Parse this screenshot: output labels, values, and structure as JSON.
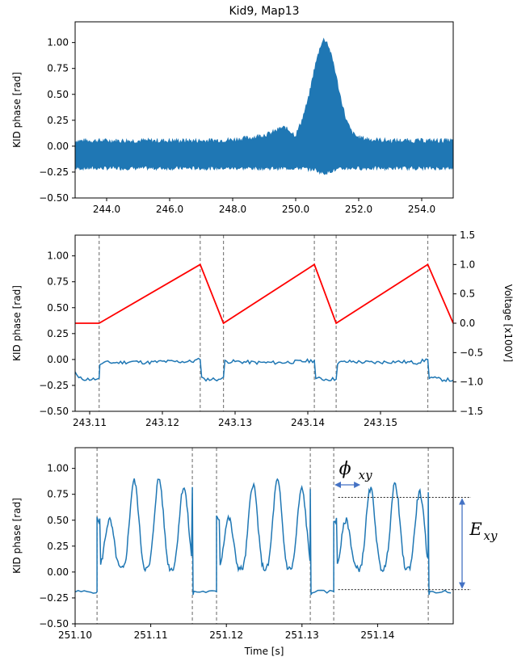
{
  "chart_data": [
    {
      "type": "area",
      "title": "Kid9, Map13",
      "xlabel": "",
      "ylabel": "KID phase [rad]",
      "xlim": [
        243.0,
        255.0
      ],
      "ylim": [
        -0.5,
        1.2
      ],
      "xticks": [
        244.0,
        246.0,
        248.0,
        250.0,
        252.0,
        254.0
      ],
      "xticklabels": [
        "244.0",
        "246.0",
        "248.0",
        "250.0",
        "252.0",
        "254.0"
      ],
      "yticks": [
        -0.5,
        -0.25,
        0.0,
        0.25,
        0.5,
        0.75,
        1.0
      ],
      "yticklabels": [
        "−0.50",
        "−0.25",
        "0.00",
        "0.25",
        "0.50",
        "0.75",
        "1.00"
      ],
      "series": [
        {
          "color": "#1f77b4",
          "x": [
            243.0,
            244.0,
            245.0,
            246.0,
            247.0,
            248.0,
            248.6,
            249.2,
            249.6,
            249.8,
            250.0,
            250.2,
            250.4,
            250.6,
            250.8,
            250.9,
            251.0,
            251.2,
            251.4,
            251.6,
            251.8,
            252.0,
            252.4,
            253.0,
            254.0,
            255.0
          ],
          "upper": [
            0.05,
            0.05,
            0.05,
            0.05,
            0.05,
            0.06,
            0.08,
            0.12,
            0.18,
            0.15,
            0.1,
            0.25,
            0.45,
            0.75,
            0.98,
            1.03,
            1.0,
            0.8,
            0.5,
            0.25,
            0.12,
            0.08,
            0.06,
            0.05,
            0.05,
            0.05
          ],
          "lower": [
            -0.21,
            -0.21,
            -0.21,
            -0.21,
            -0.21,
            -0.21,
            -0.21,
            -0.21,
            -0.21,
            -0.21,
            -0.21,
            -0.21,
            -0.22,
            -0.22,
            -0.25,
            -0.26,
            -0.25,
            -0.23,
            -0.22,
            -0.21,
            -0.21,
            -0.21,
            -0.21,
            -0.21,
            -0.21,
            -0.21
          ]
        }
      ]
    },
    {
      "type": "line",
      "title": "",
      "xlabel": "",
      "ylabel": "KID phase [rad]",
      "y2label": "Voltage [x100V]",
      "xlim": [
        243.108,
        243.16
      ],
      "ylim": [
        -0.5,
        1.2
      ],
      "y2lim": [
        -1.5,
        1.5
      ],
      "xticks": [
        243.11,
        243.12,
        243.13,
        243.14,
        243.15
      ],
      "xticklabels": [
        "243.11",
        "243.12",
        "243.13",
        "243.14",
        "243.15"
      ],
      "yticks": [
        -0.5,
        -0.25,
        0.0,
        0.25,
        0.5,
        0.75,
        1.0
      ],
      "yticklabels": [
        "−0.50",
        "−0.25",
        "0.00",
        "0.25",
        "0.50",
        "0.75",
        "1.00"
      ],
      "y2ticks": [
        -1.5,
        -1.0,
        -0.5,
        0.0,
        0.5,
        1.0,
        1.5
      ],
      "y2ticklabels": [
        "−1.5",
        "−1.0",
        "−0.5",
        "0.0",
        "0.5",
        "1.0",
        "1.5"
      ],
      "vlines": [
        243.1113,
        243.1252,
        243.1284,
        243.1409,
        243.1439,
        243.1565
      ],
      "series": [
        {
          "axis": "y",
          "color": "#1f77b4",
          "x": [
            243.108,
            243.1085,
            243.1095,
            243.111,
            243.1113,
            243.1114,
            243.112,
            243.114,
            243.116,
            243.118,
            243.12,
            243.122,
            243.124,
            243.1252,
            243.1254,
            243.126,
            243.128,
            243.1284,
            243.1286,
            243.13,
            243.133,
            243.136,
            243.139,
            243.1409,
            243.1411,
            243.142,
            243.1439,
            243.1441,
            243.146,
            243.149,
            243.152,
            243.155,
            243.1565,
            243.1567,
            243.158,
            243.16
          ],
          "y": [
            -0.12,
            -0.18,
            -0.19,
            -0.19,
            -0.18,
            -0.05,
            -0.03,
            -0.03,
            -0.02,
            -0.03,
            -0.02,
            -0.02,
            -0.02,
            0.0,
            -0.17,
            -0.19,
            -0.19,
            -0.17,
            -0.02,
            -0.02,
            -0.03,
            -0.03,
            -0.02,
            -0.01,
            -0.18,
            -0.19,
            -0.19,
            -0.03,
            -0.02,
            -0.03,
            -0.02,
            -0.03,
            0.0,
            -0.17,
            -0.19,
            -0.2
          ]
        },
        {
          "axis": "y2",
          "color": "#ff0000",
          "x": [
            243.108,
            243.1113,
            243.1252,
            243.1284,
            243.1409,
            243.1439,
            243.1565,
            243.16
          ],
          "y": [
            0.0,
            0.0,
            1.0,
            0.0,
            1.0,
            0.0,
            1.0,
            0.0
          ]
        }
      ]
    },
    {
      "type": "line",
      "title": "",
      "xlabel": "Time [s]",
      "ylabel": "KID phase [rad]",
      "xlim": [
        251.1,
        251.15
      ],
      "ylim": [
        -0.5,
        1.2
      ],
      "xticks": [
        251.1,
        251.11,
        251.12,
        251.13,
        251.14
      ],
      "xticklabels": [
        "251.10",
        "251.11",
        "251.12",
        "251.13",
        "251.14"
      ],
      "yticks": [
        -0.5,
        -0.25,
        0.0,
        0.25,
        0.5,
        0.75,
        1.0
      ],
      "yticklabels": [
        "−0.50",
        "−0.25",
        "0.00",
        "0.25",
        "0.50",
        "0.75",
        "1.00"
      ],
      "vlines": [
        251.1029,
        251.1155,
        251.1187,
        251.1311,
        251.1342,
        251.1467
      ],
      "pulse_peaks": [
        {
          "start": 251.1029,
          "end": 251.1155,
          "peaks": [
            0.5,
            0.88,
            0.9,
            0.82
          ]
        },
        {
          "start": 251.1187,
          "end": 251.1311,
          "peaks": [
            0.52,
            0.85,
            0.88,
            0.8
          ]
        },
        {
          "start": 251.1342,
          "end": 251.1467,
          "peaks": [
            0.5,
            0.8,
            0.85,
            0.77
          ]
        }
      ],
      "baseline": -0.19,
      "annotations": [
        {
          "name": "phi",
          "text_main": "ϕ",
          "text_sub": "xy"
        },
        {
          "name": "e",
          "text_main": "E",
          "text_sub": "xy",
          "top": 0.72,
          "bottom": -0.17
        }
      ]
    }
  ]
}
